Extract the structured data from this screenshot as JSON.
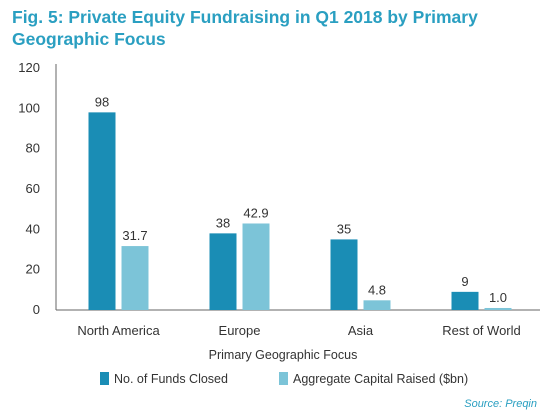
{
  "chart_data": {
    "type": "bar",
    "title": "Fig. 5: Private Equity Fundraising in Q1 2018 by Primary Geographic Focus",
    "xlabel": "Primary Geographic Focus",
    "ylabel": "",
    "categories": [
      "North America",
      "Europe",
      "Asia",
      "Rest of World"
    ],
    "series": [
      {
        "name": "No. of Funds Closed",
        "values": [
          98,
          38,
          35,
          9
        ],
        "labels": [
          "98",
          "38",
          "35",
          "9"
        ],
        "color": "#1a8db5"
      },
      {
        "name": "Aggregate Capital Raised ($bn)",
        "values": [
          31.7,
          42.9,
          4.8,
          1.0
        ],
        "labels": [
          "31.7",
          "42.9",
          "4.8",
          "1.0"
        ],
        "color": "#7cc4d8"
      }
    ],
    "ylim": [
      0,
      120
    ],
    "yticks": [
      "0",
      "20",
      "40",
      "60",
      "80",
      "100",
      "120"
    ],
    "grid": false,
    "legend_position": "bottom"
  },
  "source": "Source: Preqin",
  "colors": {
    "title": "#2a9fc1",
    "axis": "#666666"
  }
}
